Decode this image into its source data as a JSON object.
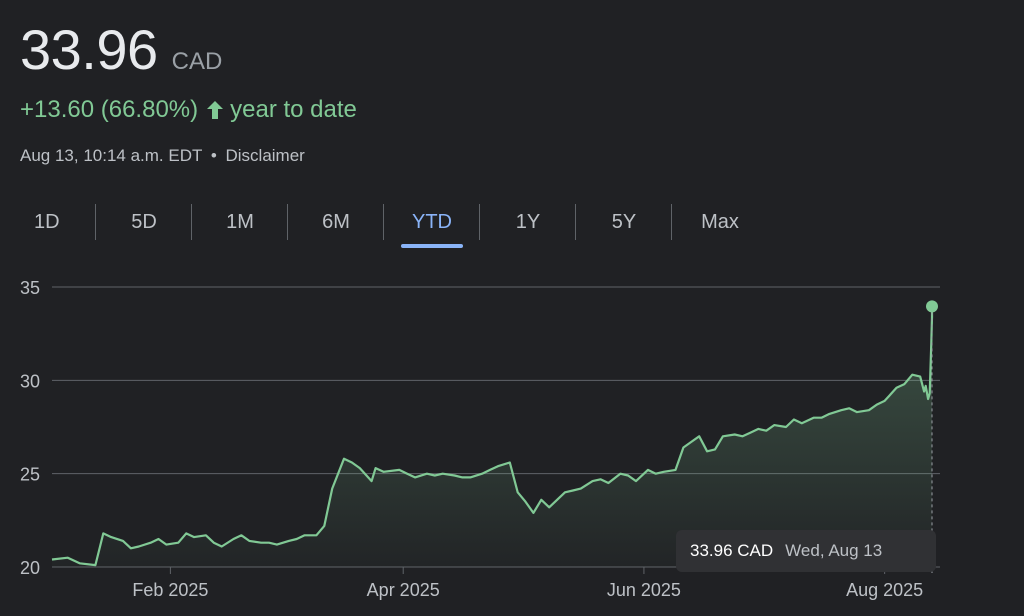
{
  "quote": {
    "price": "33.96",
    "currency": "CAD",
    "change": "+13.60 (66.80%)",
    "period_label": "year to date",
    "timestamp": "Aug 13, 10:14 a.m. EDT",
    "separator": "•",
    "disclaimer": "Disclaimer"
  },
  "tabs": [
    {
      "label": "1D"
    },
    {
      "label": "5D"
    },
    {
      "label": "1M"
    },
    {
      "label": "6M"
    },
    {
      "label": "YTD",
      "active": true
    },
    {
      "label": "1Y"
    },
    {
      "label": "5Y"
    },
    {
      "label": "Max"
    }
  ],
  "tooltip": {
    "price": "33.96 CAD",
    "date": "Wed, Aug 13"
  },
  "colors": {
    "background": "#202124",
    "line": "#81c995",
    "gain": "#81c995",
    "active_tab": "#8ab4f8",
    "gridline": "#5f6368"
  },
  "chart_data": {
    "type": "area",
    "x_unit": "date",
    "ylim": [
      20,
      35
    ],
    "yticks": [
      20,
      25,
      30,
      35
    ],
    "xlim": [
      "2025-01-02",
      "2025-08-13"
    ],
    "xticks": [
      {
        "date": "2025-02-01",
        "label": "Feb 2025"
      },
      {
        "date": "2025-04-01",
        "label": "Apr 2025"
      },
      {
        "date": "2025-06-01",
        "label": "Jun 2025"
      },
      {
        "date": "2025-08-01",
        "label": "Aug 2025"
      }
    ],
    "grid": true,
    "series": [
      {
        "points": [
          [
            "2025-01-02",
            20.4
          ],
          [
            "2025-01-06",
            20.5
          ],
          [
            "2025-01-09",
            20.2
          ],
          [
            "2025-01-13",
            20.1
          ],
          [
            "2025-01-15",
            21.8
          ],
          [
            "2025-01-17",
            21.6
          ],
          [
            "2025-01-20",
            21.4
          ],
          [
            "2025-01-22",
            21.0
          ],
          [
            "2025-01-24",
            21.1
          ],
          [
            "2025-01-27",
            21.3
          ],
          [
            "2025-01-29",
            21.5
          ],
          [
            "2025-01-31",
            21.2
          ],
          [
            "2025-02-03",
            21.3
          ],
          [
            "2025-02-05",
            21.8
          ],
          [
            "2025-02-07",
            21.6
          ],
          [
            "2025-02-10",
            21.7
          ],
          [
            "2025-02-12",
            21.3
          ],
          [
            "2025-02-14",
            21.1
          ],
          [
            "2025-02-17",
            21.5
          ],
          [
            "2025-02-19",
            21.7
          ],
          [
            "2025-02-21",
            21.4
          ],
          [
            "2025-02-24",
            21.3
          ],
          [
            "2025-02-26",
            21.3
          ],
          [
            "2025-02-28",
            21.2
          ],
          [
            "2025-03-03",
            21.4
          ],
          [
            "2025-03-05",
            21.5
          ],
          [
            "2025-03-07",
            21.7
          ],
          [
            "2025-03-10",
            21.7
          ],
          [
            "2025-03-12",
            22.2
          ],
          [
            "2025-03-14",
            24.2
          ],
          [
            "2025-03-17",
            25.8
          ],
          [
            "2025-03-19",
            25.6
          ],
          [
            "2025-03-21",
            25.3
          ],
          [
            "2025-03-24",
            24.6
          ],
          [
            "2025-03-25",
            25.3
          ],
          [
            "2025-03-27",
            25.1
          ],
          [
            "2025-03-31",
            25.2
          ],
          [
            "2025-04-02",
            25.0
          ],
          [
            "2025-04-04",
            24.8
          ],
          [
            "2025-04-07",
            25.0
          ],
          [
            "2025-04-09",
            24.9
          ],
          [
            "2025-04-11",
            25.0
          ],
          [
            "2025-04-14",
            24.9
          ],
          [
            "2025-04-16",
            24.8
          ],
          [
            "2025-04-18",
            24.8
          ],
          [
            "2025-04-21",
            25.0
          ],
          [
            "2025-04-23",
            25.2
          ],
          [
            "2025-04-25",
            25.4
          ],
          [
            "2025-04-28",
            25.6
          ],
          [
            "2025-04-30",
            24.0
          ],
          [
            "2025-05-02",
            23.5
          ],
          [
            "2025-05-04",
            22.9
          ],
          [
            "2025-05-06",
            23.6
          ],
          [
            "2025-05-08",
            23.2
          ],
          [
            "2025-05-10",
            23.6
          ],
          [
            "2025-05-12",
            24.0
          ],
          [
            "2025-05-14",
            24.1
          ],
          [
            "2025-05-16",
            24.2
          ],
          [
            "2025-05-19",
            24.6
          ],
          [
            "2025-05-21",
            24.7
          ],
          [
            "2025-05-23",
            24.5
          ],
          [
            "2025-05-26",
            25.0
          ],
          [
            "2025-05-28",
            24.9
          ],
          [
            "2025-05-30",
            24.6
          ],
          [
            "2025-06-02",
            25.2
          ],
          [
            "2025-06-04",
            25.0
          ],
          [
            "2025-06-06",
            25.1
          ],
          [
            "2025-06-09",
            25.2
          ],
          [
            "2025-06-11",
            26.4
          ],
          [
            "2025-06-13",
            26.7
          ],
          [
            "2025-06-15",
            27.0
          ],
          [
            "2025-06-17",
            26.2
          ],
          [
            "2025-06-19",
            26.3
          ],
          [
            "2025-06-21",
            27.0
          ],
          [
            "2025-06-24",
            27.1
          ],
          [
            "2025-06-26",
            27.0
          ],
          [
            "2025-06-28",
            27.2
          ],
          [
            "2025-06-30",
            27.4
          ],
          [
            "2025-07-02",
            27.3
          ],
          [
            "2025-07-04",
            27.6
          ],
          [
            "2025-07-07",
            27.5
          ],
          [
            "2025-07-09",
            27.9
          ],
          [
            "2025-07-11",
            27.7
          ],
          [
            "2025-07-14",
            28.0
          ],
          [
            "2025-07-16",
            28.0
          ],
          [
            "2025-07-18",
            28.2
          ],
          [
            "2025-07-21",
            28.4
          ],
          [
            "2025-07-23",
            28.5
          ],
          [
            "2025-07-25",
            28.3
          ],
          [
            "2025-07-28",
            28.4
          ],
          [
            "2025-07-30",
            28.7
          ],
          [
            "2025-08-01",
            28.9
          ],
          [
            "2025-08-04",
            29.6
          ],
          [
            "2025-08-06",
            29.8
          ],
          [
            "2025-08-08",
            30.3
          ],
          [
            "2025-08-10",
            30.2
          ],
          [
            "2025-08-11",
            29.4
          ],
          [
            "2025-08-11",
            29.7
          ],
          [
            "2025-08-12",
            29.0
          ],
          [
            "2025-08-12",
            29.3
          ],
          [
            "2025-08-12",
            32.0
          ],
          [
            "2025-08-13",
            33.4
          ],
          [
            "2025-08-13",
            33.96
          ]
        ]
      }
    ]
  }
}
